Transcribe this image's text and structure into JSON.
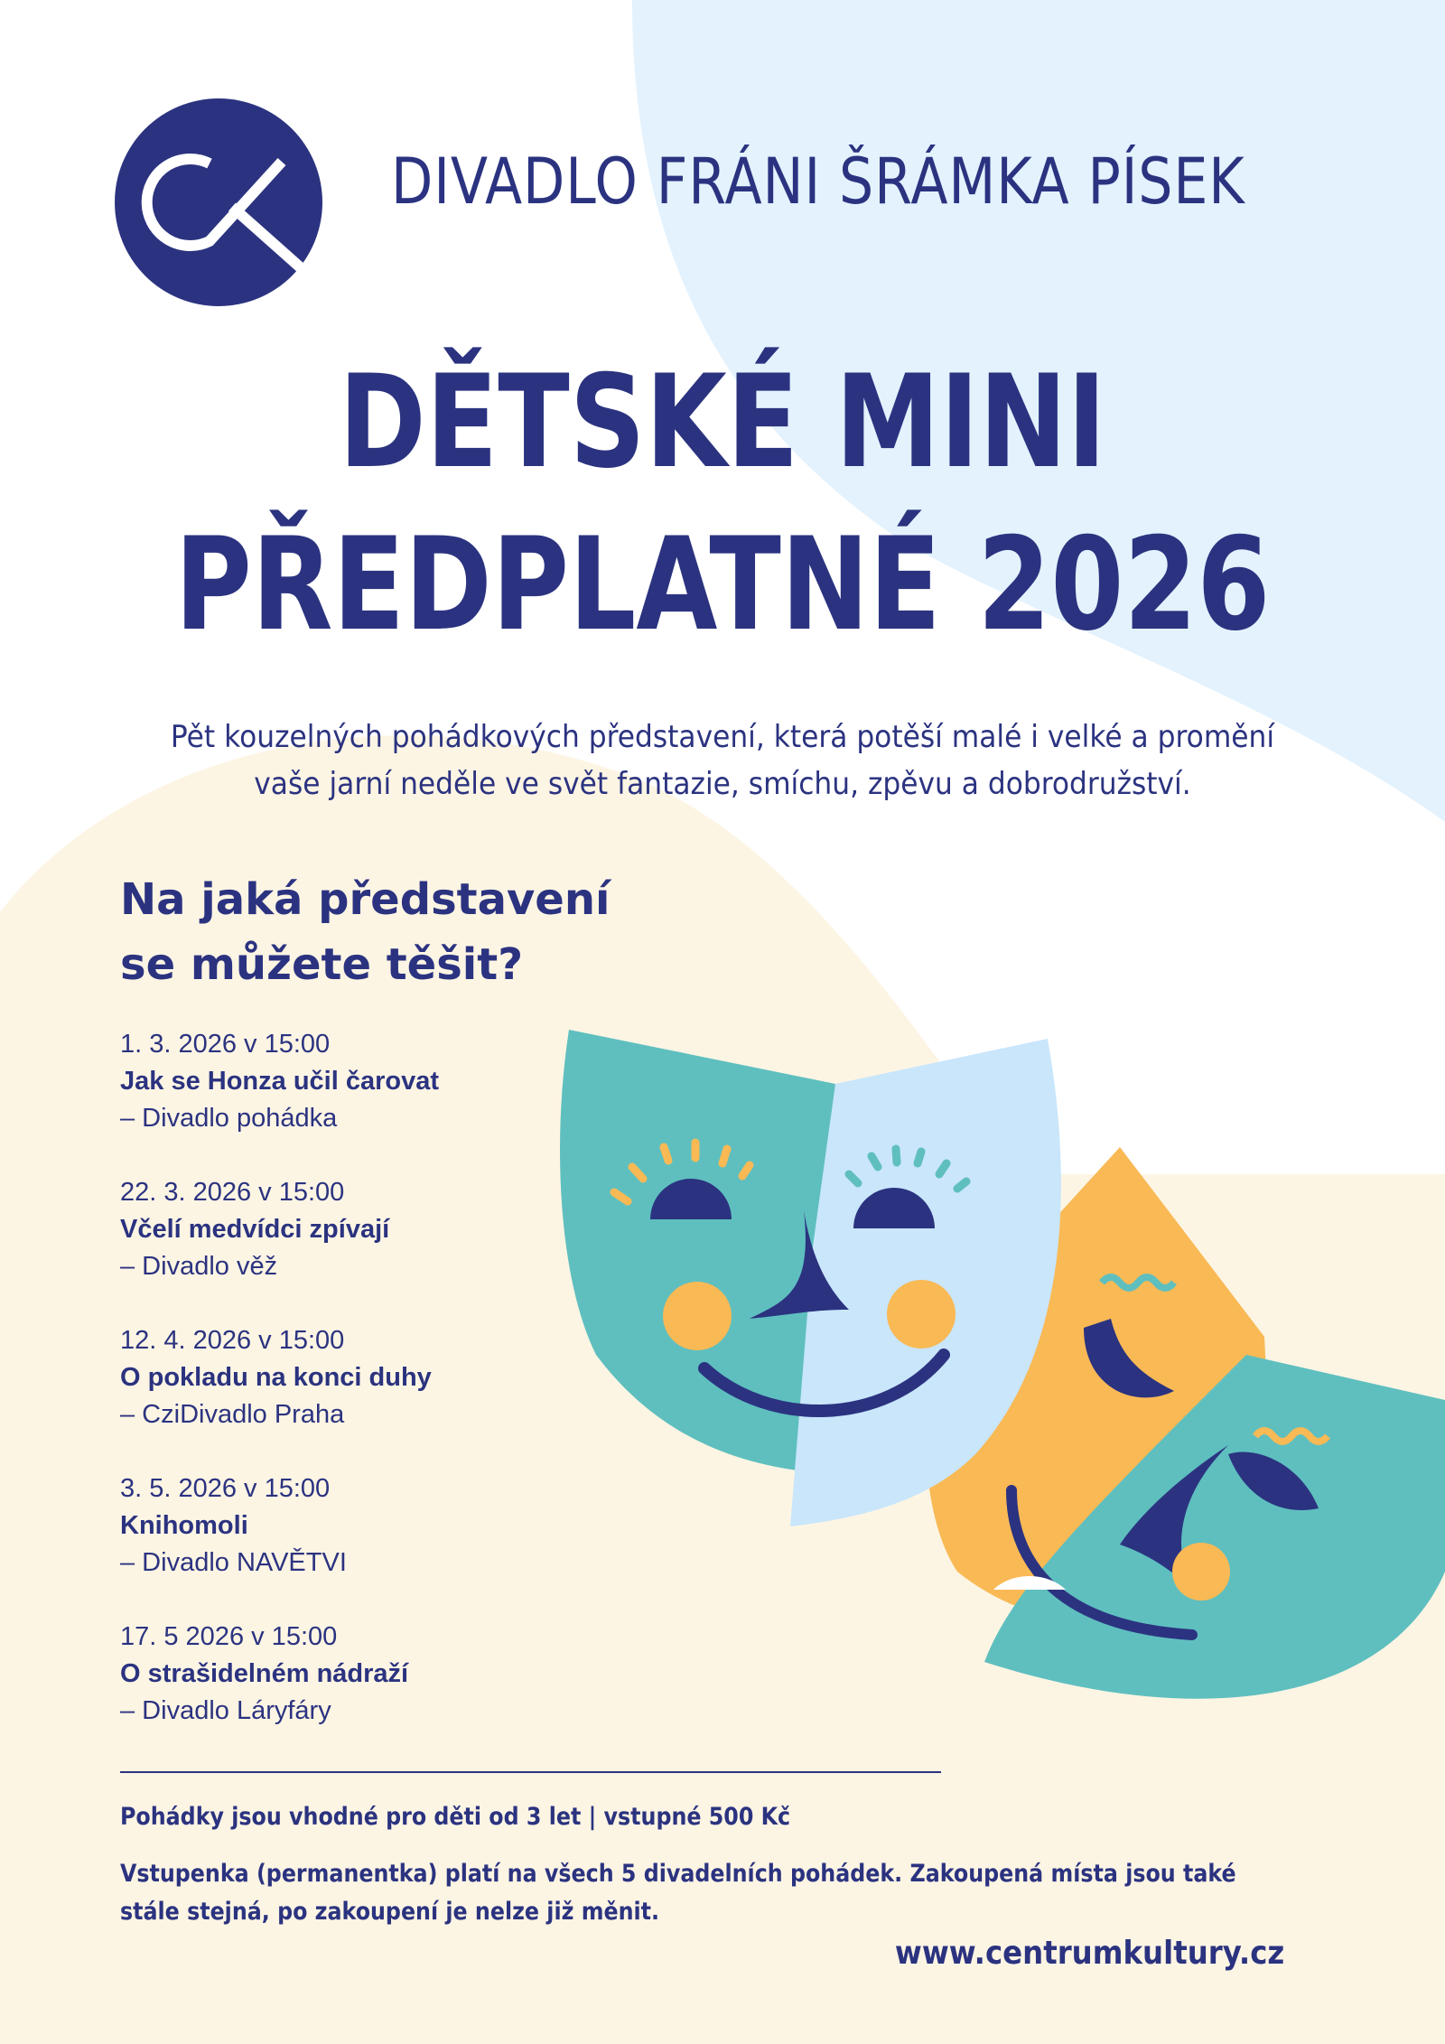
{
  "colors": {
    "navy": "#2b3380",
    "beige": "#fdf5e4",
    "light_blue": "#e3f2fd",
    "teal": "#5fbfbf",
    "yellow": "#f9b955",
    "mask_blue": "#c9e6fb"
  },
  "logo": {
    "icon": "ck-logo-circle"
  },
  "header": {
    "organization": "DIVADLO FRÁNI ŠRÁMKA PÍSEK"
  },
  "title": {
    "line1": "DĚTSKÉ MINI",
    "line2": "PŘEDPLATNÉ 2026"
  },
  "intro": {
    "line1": "Pět kouzelných pohádkových představení, která potěší malé i velké a promění",
    "line2": "vaše jarní neděle ve svět fantazie, smíchu, zpěvu a dobrodružství."
  },
  "program": {
    "heading_line1": "Na jaká představení",
    "heading_line2": "se můžete těšit?",
    "events": [
      {
        "date": "1. 3. 2026 v 15:00",
        "title": "Jak se Honza učil čarovat",
        "company": "– Divadlo pohádka"
      },
      {
        "date": "22. 3. 2026 v 15:00",
        "title": "Včelí medvídci zpívají",
        "company": "– Divadlo věž"
      },
      {
        "date": "12. 4. 2026 v 15:00",
        "title": "O pokladu na konci duhy",
        "company": "– CziDivadlo Praha"
      },
      {
        "date": "3. 5. 2026 v 15:00",
        "title": "Knihomoli",
        "company": "– Divadlo NAVĚTVI"
      },
      {
        "date": "17. 5 2026 v 15:00",
        "title": "O strašidelném nádraží",
        "company": "– Divadlo Láryfáry"
      }
    ]
  },
  "footer": {
    "age_price": "Pohádky jsou vhodné pro děti od 3 let | vstupné 500 Kč",
    "note_line1": "Vstupenka (permanentka) platí na všech 5 divadelních pohádek. Zakoupená místa jsou také",
    "note_line2": "stále stejná, po zakoupení je nelze již měnit.",
    "website": "www.centrumkultury.cz"
  },
  "illustration": {
    "icon": "theatre-masks"
  }
}
